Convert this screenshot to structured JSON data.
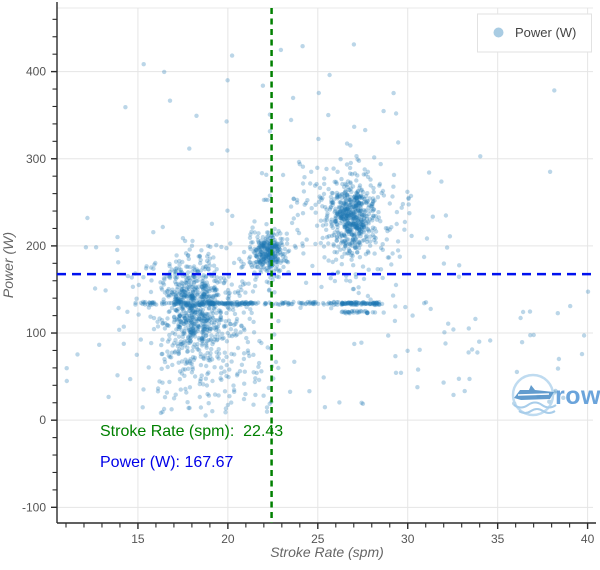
{
  "chart_data": {
    "type": "scatter",
    "title": "",
    "xlabel": "Stroke Rate (spm)",
    "ylabel": "Power (W)",
    "xlim": [
      10.5,
      40.3
    ],
    "ylim": [
      -118,
      473
    ],
    "grid": true,
    "x_major_ticks": [
      15,
      20,
      25,
      30,
      35,
      40
    ],
    "y_major_ticks": [
      -100,
      0,
      100,
      200,
      300,
      400
    ],
    "x_minor": {
      "start": 11,
      "end": 40,
      "step": 1
    },
    "y_minor": {
      "start": -100,
      "end": 460,
      "step": 20
    },
    "legend": {
      "label": "Power (W)",
      "position": "top-right"
    },
    "marker_color": "#1f77b4",
    "marker_opacity": 0.3,
    "marker_radius": 2.2,
    "seed": 1337,
    "reference_lines": {
      "vline": {
        "value": 22.43,
        "color": "#008000",
        "style": "dashed"
      },
      "hline": {
        "value": 167.67,
        "color": "#0011ee",
        "style": "dashed"
      }
    },
    "point_clusters": [
      {
        "name": "low-rate-main",
        "kind": "gauss",
        "n": 520,
        "x": 18.2,
        "y": 130,
        "sx": 0.8,
        "sy": 25
      },
      {
        "name": "low-rate-halo",
        "kind": "gauss",
        "n": 280,
        "x": 18.3,
        "y": 113,
        "sx": 1.6,
        "sy": 46
      },
      {
        "name": "low-power-tail",
        "kind": "gauss",
        "n": 120,
        "x": 19.4,
        "y": 62,
        "sx": 2.1,
        "sy": 31
      },
      {
        "name": "mid-rate-core",
        "kind": "gauss",
        "n": 250,
        "x": 22.3,
        "y": 191,
        "sx": 0.5,
        "sy": 10
      },
      {
        "name": "mid-rate-halo",
        "kind": "gauss",
        "n": 70,
        "x": 22.2,
        "y": 196,
        "sx": 1.0,
        "sy": 24
      },
      {
        "name": "high-rate-core",
        "kind": "gauss",
        "n": 470,
        "x": 26.9,
        "y": 232,
        "sx": 0.65,
        "sy": 20
      },
      {
        "name": "high-rate-halo",
        "kind": "gauss",
        "n": 165,
        "x": 26.8,
        "y": 230,
        "sx": 1.3,
        "sy": 38
      },
      {
        "name": "upper-mid-sparse",
        "kind": "gauss",
        "n": 42,
        "x": 24.0,
        "y": 250,
        "sx": 1.2,
        "sy": 30
      },
      {
        "name": "band-133",
        "kind": "uniform",
        "n": 170,
        "x0": 14.8,
        "x1": 28.6,
        "y0": 132.2,
        "y1": 135.8
      },
      {
        "name": "band-133-dense-left",
        "kind": "uniform",
        "n": 60,
        "x0": 18.8,
        "x1": 21.8,
        "y0": 132.8,
        "y1": 135.2
      },
      {
        "name": "band-133-dense-right",
        "kind": "uniform",
        "n": 55,
        "x0": 26.3,
        "x1": 28.4,
        "y0": 132.8,
        "y1": 135.2
      },
      {
        "name": "band-124",
        "kind": "uniform",
        "n": 30,
        "x0": 26.3,
        "x1": 28.2,
        "y0": 122.6,
        "y1": 125.4
      },
      {
        "name": "right-sparse-low",
        "kind": "uniform",
        "n": 48,
        "x0": 29.0,
        "x1": 40.1,
        "y0": 18,
        "y1": 148
      },
      {
        "name": "right-sparse-mid",
        "kind": "uniform",
        "n": 22,
        "x0": 28.6,
        "x1": 33.0,
        "y0": 160,
        "y1": 285
      },
      {
        "name": "top-sparse",
        "kind": "uniform",
        "n": 26,
        "x0": 14.0,
        "x1": 31.5,
        "y0": 300,
        "y1": 432
      },
      {
        "name": "top-right-sparse",
        "kind": "uniform",
        "n": 3,
        "x0": 33.0,
        "x1": 39.5,
        "y0": 280,
        "y1": 390
      },
      {
        "name": "background-sparse",
        "kind": "uniform",
        "n": 85,
        "x0": 10.8,
        "x1": 30.8,
        "y0": 5,
        "y1": 235
      }
    ]
  },
  "annotations": {
    "vline_text": "Stroke Rate (spm):  22.43",
    "vline_color": "#008000",
    "hline_text": "Power (W): 167.67",
    "hline_color": "#0000e8"
  },
  "legend": {
    "label": "Power (W)"
  },
  "watermark": {
    "text": "rows"
  }
}
